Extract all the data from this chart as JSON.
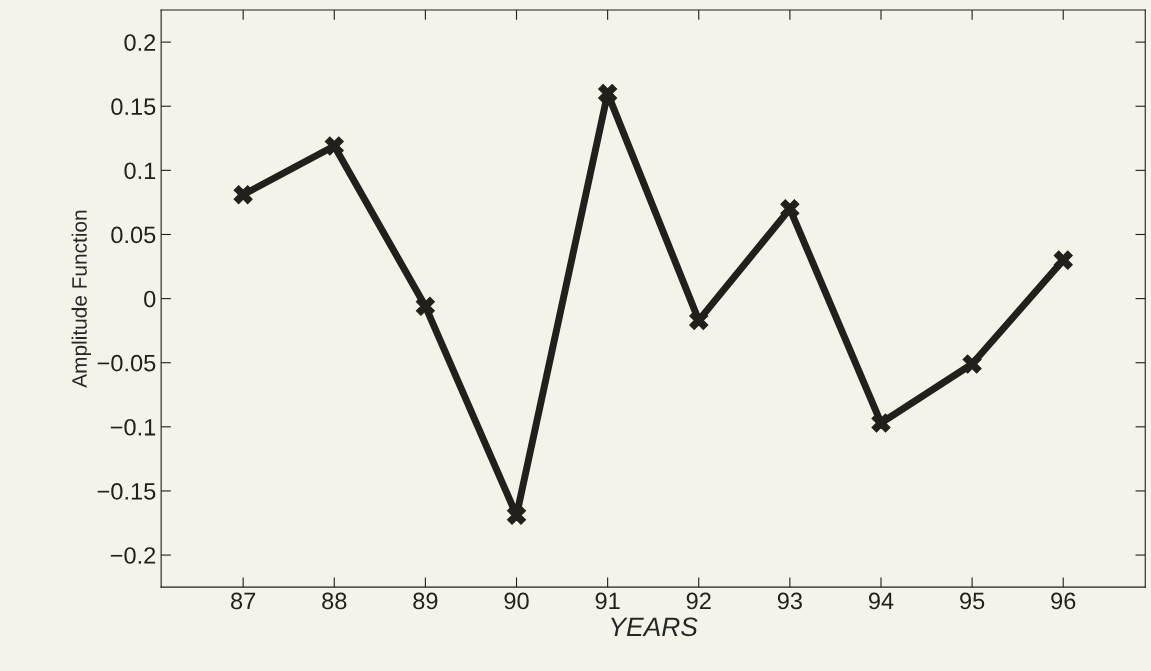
{
  "chart_data": {
    "type": "line",
    "xlabel": "YEARS",
    "ylabel": "Amplitude Function",
    "x": [
      87,
      88,
      89,
      90,
      91,
      92,
      93,
      94,
      95,
      96
    ],
    "series": [
      {
        "color": "#231f1c",
        "values": [
          0.081,
          0.119,
          -0.006,
          -0.169,
          0.16,
          -0.017,
          0.07,
          -0.097,
          -0.051,
          0.03
        ]
      }
    ],
    "xlim": [
      86.1,
      96.9
    ],
    "xticks": [
      87,
      88,
      89,
      90,
      91,
      92,
      93,
      94,
      95,
      96
    ],
    "ylim": [
      -0.225,
      0.225
    ],
    "yticks": [
      {
        "value": -0.2,
        "label": "−0.2"
      },
      {
        "value": -0.15,
        "label": "−0.15"
      },
      {
        "value": -0.1,
        "label": "−0.1"
      },
      {
        "value": -0.05,
        "label": "−0.05"
      },
      0,
      0.05,
      0.1,
      0.15,
      0.2
    ],
    "marker": "cross",
    "line_style": "solid",
    "grid": false,
    "legend": false
  }
}
